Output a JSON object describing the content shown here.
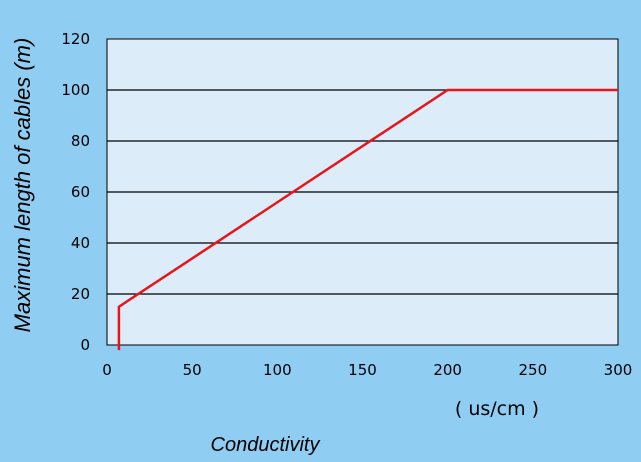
{
  "chart_data": {
    "type": "line",
    "title": "",
    "xlabel": "Conductivity",
    "xunit": "( us/cm )",
    "ylabel": "Maximum length of cables (m)",
    "xlim": [
      0,
      300
    ],
    "ylim": [
      0,
      120
    ],
    "xticks": [
      0,
      50,
      100,
      150,
      200,
      250,
      300
    ],
    "yticks": [
      0,
      20,
      40,
      60,
      80,
      100,
      120
    ],
    "grid": "horizontal",
    "series": [
      {
        "x": [
          7,
          7,
          200,
          300
        ],
        "y": [
          -2,
          15,
          100,
          100
        ]
      }
    ]
  },
  "colors": {
    "page_background": "#8fcdf3",
    "plot_background": "#dcedf9",
    "line": "#e8141c",
    "grid": "#000000"
  }
}
